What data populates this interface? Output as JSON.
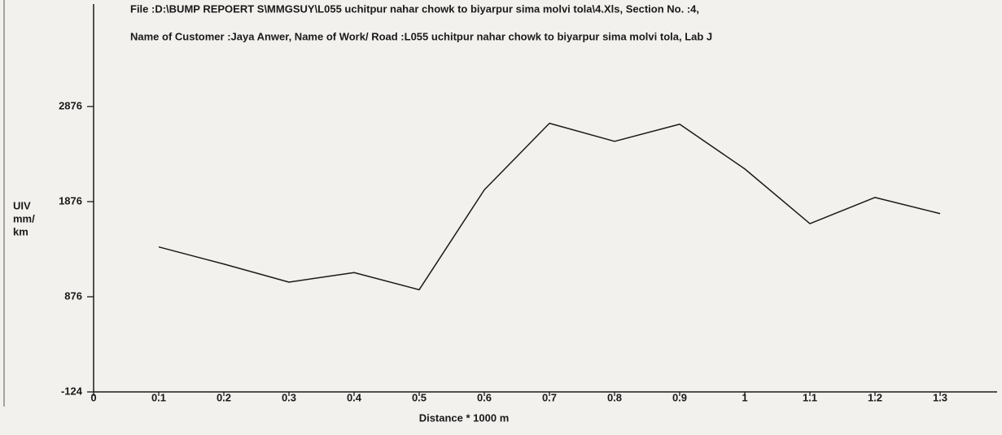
{
  "chart_data": {
    "type": "line",
    "title_lines": [
      "File :D:\\BUMP REPOERT S\\MMGSUY\\L055 uchitpur nahar chowk to biyarpur sima molvi tola\\4.Xls,   Section No. :4,",
      "Name of Customer :Jaya Anwer,  Name of Work/ Road :L055 uchitpur nahar chowk to biyarpur sima molvi tola,  Lab J"
    ],
    "ylabel_lines": [
      "UIV",
      "mm/",
      "km"
    ],
    "xlabel": "Distance * 1000 m",
    "x": [
      0.1,
      0.2,
      0.3,
      0.4,
      0.5,
      0.6,
      0.7,
      0.8,
      0.9,
      1,
      1.1,
      1.2,
      1.3
    ],
    "values": [
      1400,
      1220,
      1030,
      1130,
      950,
      2000,
      2700,
      2510,
      2690,
      2220,
      1645,
      1920,
      1750
    ],
    "color": "#1a1a1a",
    "xlim": [
      0,
      1.38
    ],
    "xticks": [
      0,
      0.1,
      0.2,
      0.3,
      0.4,
      0.5,
      0.6,
      0.7,
      0.8,
      0.9,
      1,
      1.1,
      1.2,
      1.3
    ],
    "ylim": [
      -124,
      3876
    ],
    "yticks": [
      -124,
      876,
      1876,
      2876
    ]
  }
}
